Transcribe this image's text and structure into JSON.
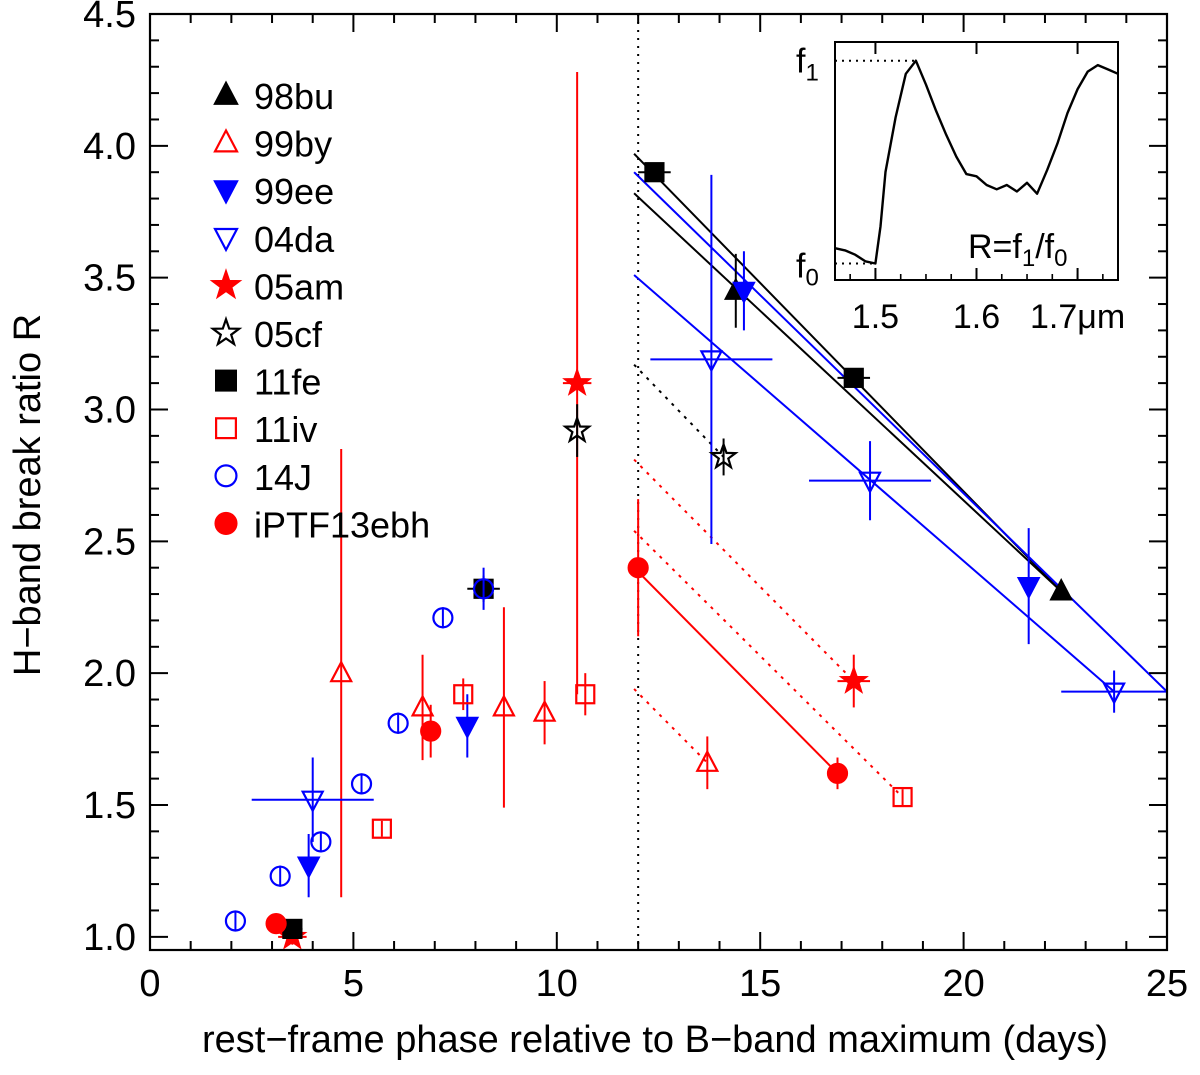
{
  "chart_data": {
    "type": "scatter",
    "xlabel": "rest−frame phase relative to B−band maximum (days)",
    "ylabel": "H−band break ratio R",
    "xlim": [
      0,
      25
    ],
    "ylim": [
      0.95,
      4.5
    ],
    "x_ticks": [
      0,
      5,
      10,
      15,
      20,
      25
    ],
    "x_tick_labels": [
      "0",
      "5",
      "10",
      "15",
      "20",
      "25"
    ],
    "y_ticks": [
      1.0,
      1.5,
      2.0,
      2.5,
      3.0,
      3.5,
      4.0,
      4.5
    ],
    "y_tick_labels": [
      "1.0",
      "1.5",
      "2.0",
      "2.5",
      "3.0",
      "3.5",
      "4.0",
      "4.5"
    ],
    "vertical_reference_line": {
      "x": 12,
      "style": "dotted",
      "color": "#000000"
    },
    "series": [
      {
        "name": "98bu",
        "marker": "triangle-up",
        "filled": true,
        "color": "#000000",
        "points": [
          {
            "x": 14.4,
            "y": 3.45,
            "yerr": 0.14,
            "xerr": 0.15
          },
          {
            "x": 22.4,
            "y": 2.31,
            "yerr": 0.0,
            "xerr": 0.0
          }
        ]
      },
      {
        "name": "99by",
        "marker": "triangle-up",
        "filled": false,
        "color": "#ff0000",
        "points": [
          {
            "x": 4.7,
            "y": 2.0,
            "yerr": 0.85,
            "xerr": 0.0
          },
          {
            "x": 6.7,
            "y": 1.87,
            "yerr": 0.2,
            "xerr": 0.0
          },
          {
            "x": 8.7,
            "y": 1.87,
            "yerr": 0.38,
            "xerr": 0.0
          },
          {
            "x": 9.7,
            "y": 1.85,
            "yerr": 0.12,
            "xerr": 0.0
          },
          {
            "x": 13.7,
            "y": 1.66,
            "yerr": 0.1,
            "xerr": 0.0
          }
        ]
      },
      {
        "name": "99ee",
        "marker": "triangle-down",
        "filled": true,
        "color": "#0000ff",
        "points": [
          {
            "x": 3.9,
            "y": 1.27,
            "yerr": 0.12,
            "xerr": 0.0
          },
          {
            "x": 7.8,
            "y": 1.8,
            "yerr": 0.12,
            "xerr": 0.0
          },
          {
            "x": 14.6,
            "y": 3.45,
            "yerr": 0.15,
            "xerr": 0.0
          },
          {
            "x": 21.6,
            "y": 2.33,
            "yerr": 0.22,
            "xerr": 0.0
          }
        ]
      },
      {
        "name": "04da",
        "marker": "triangle-down",
        "filled": false,
        "color": "#0000ff",
        "points": [
          {
            "x": 4.0,
            "y": 1.52,
            "yerr": 0.16,
            "xerr": 1.5
          },
          {
            "x": 13.8,
            "y": 3.19,
            "yerr": 0.7,
            "xerr": 1.5
          },
          {
            "x": 17.7,
            "y": 2.73,
            "yerr": 0.15,
            "xerr": 1.5
          },
          {
            "x": 23.7,
            "y": 1.93,
            "yerr": 0.08,
            "xerr": 1.3
          }
        ]
      },
      {
        "name": "05am",
        "marker": "star",
        "filled": true,
        "color": "#ff0000",
        "points": [
          {
            "x": 3.5,
            "y": 1.0,
            "yerr": 0.03,
            "xerr": 0.35
          },
          {
            "x": 10.5,
            "y": 3.1,
            "yerr": 1.18,
            "xerr": 0.35
          },
          {
            "x": 17.3,
            "y": 1.97,
            "yerr": 0.1,
            "xerr": 0.4
          }
        ]
      },
      {
        "name": "05cf",
        "marker": "star",
        "filled": false,
        "color": "#000000",
        "points": [
          {
            "x": 10.5,
            "y": 2.92,
            "yerr": 0.1,
            "xerr": 0.0
          },
          {
            "x": 14.1,
            "y": 2.82,
            "yerr": 0.07,
            "xerr": 0.0
          }
        ]
      },
      {
        "name": "11fe",
        "marker": "square",
        "filled": true,
        "color": "#000000",
        "points": [
          {
            "x": 3.5,
            "y": 1.03,
            "yerr": 0.0,
            "xerr": 0.25
          },
          {
            "x": 8.2,
            "y": 2.32,
            "yerr": 0.05,
            "xerr": 0.4
          },
          {
            "x": 12.4,
            "y": 3.9,
            "yerr": 0.0,
            "xerr": 0.4
          },
          {
            "x": 17.3,
            "y": 3.12,
            "yerr": 0.0,
            "xerr": 0.4
          }
        ]
      },
      {
        "name": "11iv",
        "marker": "square",
        "filled": false,
        "color": "#ff0000",
        "points": [
          {
            "x": 5.7,
            "y": 1.41,
            "yerr": 0.03,
            "xerr": 0.0
          },
          {
            "x": 7.7,
            "y": 1.92,
            "yerr": 0.06,
            "xerr": 0.0
          },
          {
            "x": 10.7,
            "y": 1.92,
            "yerr": 0.08,
            "xerr": 0.0
          },
          {
            "x": 18.5,
            "y": 1.53,
            "yerr": 0.03,
            "xerr": 0.0
          }
        ]
      },
      {
        "name": "14J",
        "marker": "circle",
        "filled": false,
        "color": "#0000ff",
        "points": [
          {
            "x": 2.1,
            "y": 1.06,
            "yerr": 0.04,
            "xerr": 0.0
          },
          {
            "x": 3.2,
            "y": 1.23,
            "yerr": 0.04,
            "xerr": 0.0
          },
          {
            "x": 4.2,
            "y": 1.36,
            "yerr": 0.04,
            "xerr": 0.0
          },
          {
            "x": 5.2,
            "y": 1.58,
            "yerr": 0.04,
            "xerr": 0.0
          },
          {
            "x": 6.1,
            "y": 1.81,
            "yerr": 0.04,
            "xerr": 0.0
          },
          {
            "x": 7.2,
            "y": 2.21,
            "yerr": 0.04,
            "xerr": 0.0
          },
          {
            "x": 8.2,
            "y": 2.32,
            "yerr": 0.08,
            "xerr": 0.0
          }
        ]
      },
      {
        "name": "iPTF13ebh",
        "marker": "circle",
        "filled": true,
        "color": "#ff0000",
        "points": [
          {
            "x": 3.1,
            "y": 1.05,
            "yerr": 0.03,
            "xerr": 0.0
          },
          {
            "x": 6.9,
            "y": 1.78,
            "yerr": 0.1,
            "xerr": 0.0
          },
          {
            "x": 12.0,
            "y": 2.4,
            "yerr": 0.26,
            "xerr": 0.0
          },
          {
            "x": 16.9,
            "y": 1.62,
            "yerr": 0.06,
            "xerr": 0.0
          }
        ]
      }
    ],
    "fit_lines": [
      {
        "x": [
          11.9,
          22.4
        ],
        "y": [
          3.97,
          2.31
        ],
        "color": "#000000",
        "style": "solid"
      },
      {
        "x": [
          11.9,
          22.4
        ],
        "y": [
          3.82,
          2.31
        ],
        "color": "#000000",
        "style": "solid"
      },
      {
        "x": [
          11.9,
          25.0
        ],
        "y": [
          3.9,
          1.93
        ],
        "color": "#0000ff",
        "style": "solid"
      },
      {
        "x": [
          11.9,
          23.7
        ],
        "y": [
          3.51,
          1.93
        ],
        "color": "#0000ff",
        "style": "solid"
      },
      {
        "x": [
          11.9,
          14.1
        ],
        "y": [
          3.17,
          2.82
        ],
        "color": "#000000",
        "style": "dotted"
      },
      {
        "x": [
          11.9,
          17.3
        ],
        "y": [
          2.81,
          1.97
        ],
        "color": "#ff0000",
        "style": "dotted"
      },
      {
        "x": [
          11.9,
          18.5
        ],
        "y": [
          2.54,
          1.53
        ],
        "color": "#ff0000",
        "style": "dotted"
      },
      {
        "x": [
          11.9,
          16.9
        ],
        "y": [
          2.4,
          1.62
        ],
        "color": "#ff0000",
        "style": "solid"
      },
      {
        "x": [
          11.9,
          13.7
        ],
        "y": [
          1.94,
          1.66
        ],
        "color": "#ff0000",
        "style": "dotted"
      }
    ],
    "inset": {
      "type": "line",
      "xlim": [
        1.46,
        1.74
      ],
      "x_ticks": [
        1.5,
        1.6,
        1.7
      ],
      "x_tick_labels": [
        "1.5",
        "1.6",
        "1.7μm"
      ],
      "y_label_top": "f",
      "y_label_top_sub": "1",
      "y_label_bottom": "f",
      "y_label_bottom_sub": "0",
      "annotation_prefix": "R=f",
      "annotation_sub1": "1",
      "annotation_mid": "/f",
      "annotation_sub2": "0",
      "spectrum": [
        [
          1.46,
          0.1
        ],
        [
          1.47,
          0.09
        ],
        [
          1.48,
          0.07
        ],
        [
          1.49,
          0.04
        ],
        [
          1.5,
          0.03
        ],
        [
          1.505,
          0.2
        ],
        [
          1.51,
          0.45
        ],
        [
          1.52,
          0.7
        ],
        [
          1.53,
          0.9
        ],
        [
          1.54,
          0.96
        ],
        [
          1.55,
          0.85
        ],
        [
          1.56,
          0.73
        ],
        [
          1.57,
          0.62
        ],
        [
          1.58,
          0.52
        ],
        [
          1.59,
          0.44
        ],
        [
          1.6,
          0.43
        ],
        [
          1.61,
          0.39
        ],
        [
          1.62,
          0.37
        ],
        [
          1.63,
          0.39
        ],
        [
          1.64,
          0.36
        ],
        [
          1.65,
          0.4
        ],
        [
          1.66,
          0.35
        ],
        [
          1.67,
          0.46
        ],
        [
          1.68,
          0.58
        ],
        [
          1.69,
          0.72
        ],
        [
          1.7,
          0.83
        ],
        [
          1.71,
          0.91
        ],
        [
          1.72,
          0.94
        ],
        [
          1.73,
          0.92
        ],
        [
          1.74,
          0.9
        ]
      ]
    }
  }
}
